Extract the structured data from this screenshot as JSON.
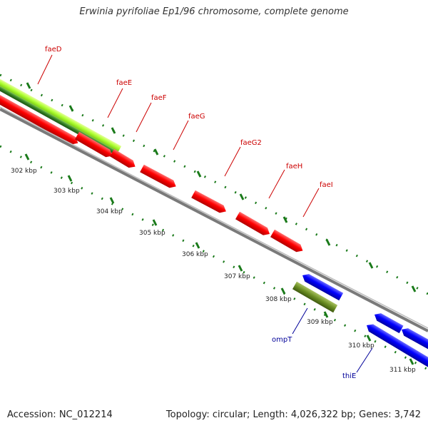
{
  "title": "Erwinia pyrifoliae Ep1/96 chromosome, complete genome",
  "footer": {
    "accession": "Accession: NC_012214",
    "topology": "Topology: circular; Length: 4,026,322 bp; Genes: 3,742"
  },
  "colors": {
    "forward_gene": "#ff0000",
    "reverse_gene": "#0000ff",
    "highlight_band": "#adff2f",
    "highlight_band_dark": "#3a8a2a",
    "olive_gene": "#6b8e23",
    "backbone": "#808080",
    "tick": "#1a7a1a",
    "forward_label": "#cc0000",
    "reverse_label": "#000099"
  },
  "ruler": {
    "unit": "kbp",
    "labels": [
      "302 kbp",
      "303 kbp",
      "304 kbp",
      "305 kbp",
      "306 kbp",
      "307 kbp",
      "308 kbp",
      "309 kbp",
      "310 kbp",
      "311 kbp"
    ]
  },
  "genes": {
    "forward_labels": [
      "faeD",
      "faeE",
      "faeF",
      "faeG",
      "faeG2",
      "faeH",
      "faeI"
    ],
    "reverse_labels": [
      "ompT",
      "thiE"
    ]
  }
}
